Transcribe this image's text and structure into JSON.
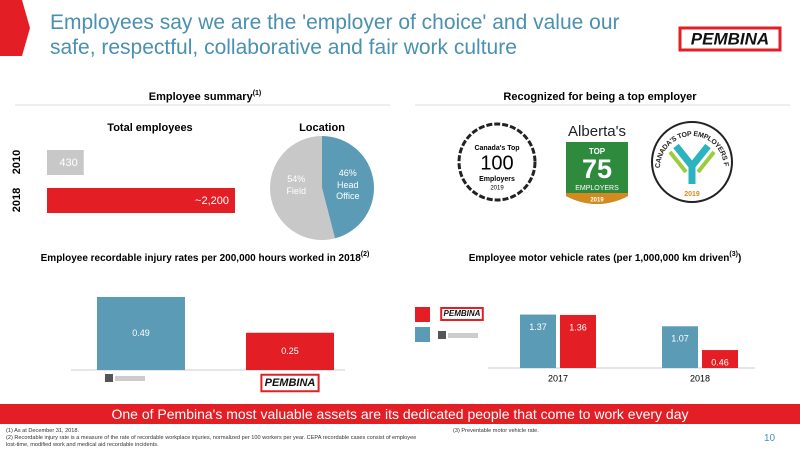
{
  "title": "Employees say we are the 'employer of choice' and value our safe, respectful, collaborative and fair work culture",
  "logo": "PEMBINA",
  "sections": [
    {
      "text": "Employee summary",
      "note": "(1)"
    },
    {
      "text": "Recognized for being a top employer"
    }
  ],
  "awards": [
    [
      "Canada's Top",
      "100",
      "Employers",
      "2019"
    ],
    [
      "Alberta's",
      "TOP",
      "75",
      "EMPLOYERS",
      "2019"
    ],
    [
      "CANADA'S TOP EMPLOYERS FOR YOUNG PEOPLE",
      "2019"
    ]
  ],
  "chart_data": [
    {
      "type": "bar",
      "orientation": "horizontal",
      "title": "Total employees",
      "categories": [
        "2010",
        "2018"
      ],
      "values": [
        430,
        2200
      ],
      "value_labels": [
        "430",
        "~2,200"
      ],
      "colors": [
        "#c8c8c8",
        "#e31e24"
      ]
    },
    {
      "type": "pie",
      "title": "Location",
      "labels": [
        "Field",
        "Head Office"
      ],
      "values": [
        54,
        46
      ],
      "value_labels": [
        "54%",
        "46%"
      ],
      "colors": [
        "#c8c8c8",
        "#5b9bb5"
      ]
    },
    {
      "type": "bar",
      "title": "Employee recordable injury rates per 200,000 hours worked in 2018",
      "note": "(2)",
      "categories": [
        null,
        "PEMBINA"
      ],
      "values": [
        0.49,
        0.25
      ],
      "colors": [
        "#5b9bb5",
        "#e31e24"
      ]
    },
    {
      "type": "bar",
      "title": "Employee motor vehicle rates (per 1,000,000 km driven",
      "note": "(3)",
      "title_suffix": ")",
      "categories": [
        "2017",
        "2018"
      ],
      "series": [
        {
          "color": "#5b9bb5",
          "values": [
            1.37,
            1.07
          ]
        },
        {
          "name": "PEMBINA",
          "color": "#e31e24",
          "values": [
            1.36,
            0.46
          ]
        }
      ]
    }
  ],
  "banner": "One of Pembina's most valuable assets are its dedicated people that come to work every day",
  "footnotes": [
    "(1) As at December 31, 2018.",
    "(2) Recordable injury rate is a measure of the rate of recordable workplace injuries, normalized per 100 workers per year. CEPA recordable cases consist of employee lost-time, modified work and medical aid recordable incidents.",
    "(3) Preventable motor vehicle rate."
  ],
  "page_number": "10"
}
